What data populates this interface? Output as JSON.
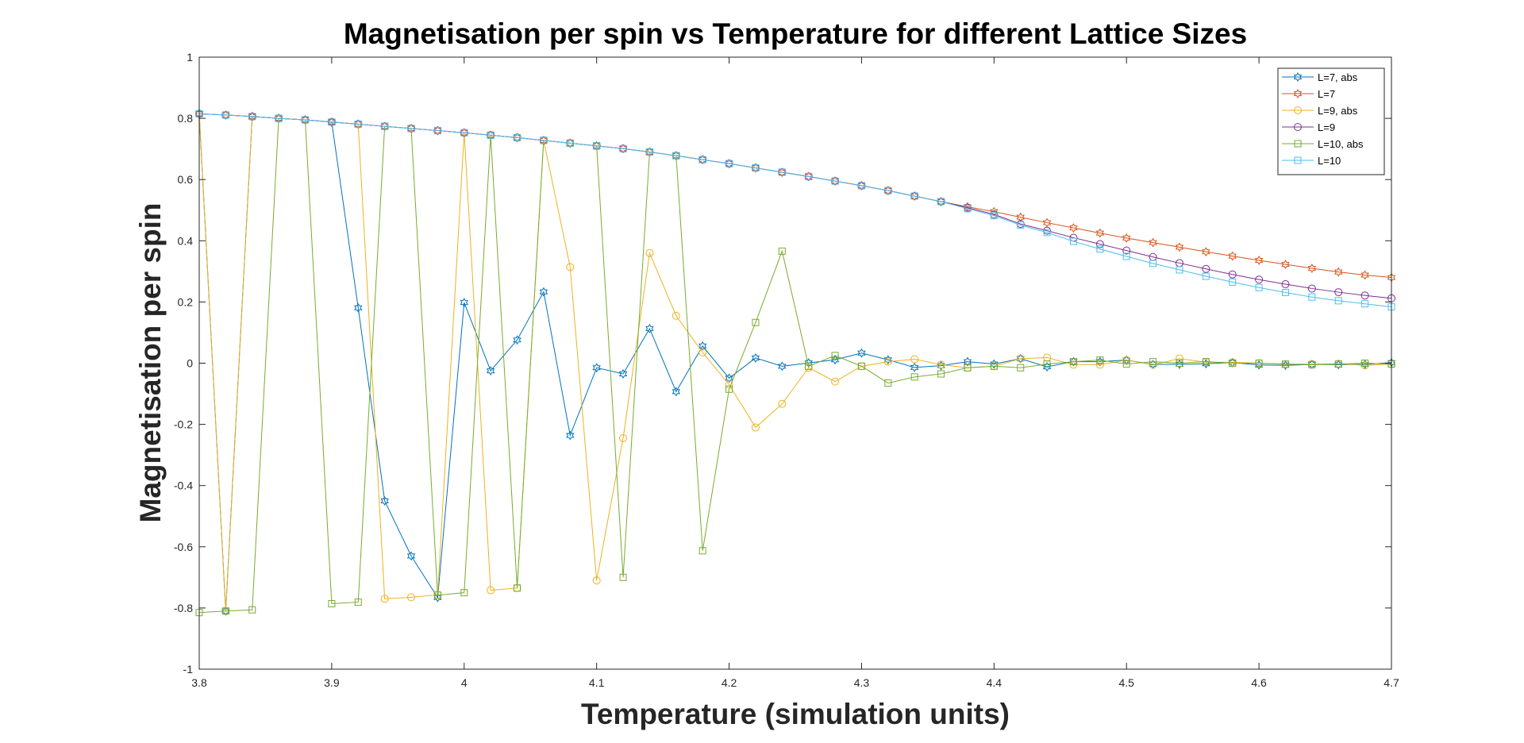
{
  "chart_data": {
    "type": "line",
    "title": "Magnetisation per spin vs Temperature for different Lattice Sizes",
    "xlabel": "Temperature (simulation units)",
    "ylabel": "Magnetisation per spin",
    "xlim": [
      3.8,
      4.7
    ],
    "ylim": [
      -1,
      1
    ],
    "xticks": [
      "3.8",
      "3.9",
      "4",
      "4.1",
      "4.2",
      "4.3",
      "4.4",
      "4.5",
      "4.6",
      "4.7"
    ],
    "yticks": [
      "-1",
      "-0.8",
      "-0.6",
      "-0.4",
      "-0.2",
      "0",
      "0.2",
      "0.4",
      "0.6",
      "0.8",
      "1"
    ],
    "grid": false,
    "legend_position": "top-right",
    "x": [
      3.8,
      3.82,
      3.84,
      3.86,
      3.88,
      3.9,
      3.92,
      3.94,
      3.96,
      3.98,
      4.0,
      4.02,
      4.04,
      4.06,
      4.08,
      4.1,
      4.12,
      4.14,
      4.16,
      4.18,
      4.2,
      4.22,
      4.24,
      4.26,
      4.28,
      4.3,
      4.32,
      4.34,
      4.36,
      4.38,
      4.4,
      4.42,
      4.44,
      4.46,
      4.48,
      4.5,
      4.52,
      4.54,
      4.56,
      4.58,
      4.6,
      4.62,
      4.64,
      4.66,
      4.68,
      4.7
    ],
    "series": [
      {
        "name": "L=7, abs",
        "color": "#0072BD",
        "marker": "hexagram",
        "values": [
          0.815,
          -0.81,
          0.806,
          0.8,
          0.795,
          0.788,
          0.181,
          -0.45,
          -0.63,
          -0.766,
          0.198,
          -0.025,
          0.076,
          0.233,
          -0.236,
          -0.015,
          -0.035,
          0.113,
          -0.093,
          0.056,
          -0.049,
          0.017,
          -0.01,
          0.001,
          0.011,
          0.033,
          0.011,
          -0.014,
          -0.008,
          0.005,
          -0.003,
          0.015,
          -0.012,
          0.005,
          0.005,
          0.01,
          -0.004,
          -0.004,
          -0.002,
          0.002,
          -0.006,
          -0.007,
          -0.004,
          -0.005,
          -0.004,
          0.002
        ]
      },
      {
        "name": "L=7",
        "color": "#D95319",
        "marker": "hexagram",
        "values": [
          0.815,
          0.811,
          0.806,
          0.8,
          0.795,
          0.788,
          0.781,
          0.774,
          0.767,
          0.76,
          0.753,
          0.745,
          0.737,
          0.728,
          0.719,
          0.71,
          0.701,
          0.69,
          0.678,
          0.665,
          0.652,
          0.638,
          0.624,
          0.61,
          0.595,
          0.58,
          0.564,
          0.546,
          0.528,
          0.511,
          0.495,
          0.477,
          0.459,
          0.442,
          0.425,
          0.409,
          0.394,
          0.379,
          0.364,
          0.35,
          0.336,
          0.323,
          0.31,
          0.298,
          0.288,
          0.28
        ]
      },
      {
        "name": "L=9, abs",
        "color": "#EDB120",
        "marker": "circle",
        "values": [
          0.815,
          -0.81,
          0.806,
          0.8,
          0.795,
          0.788,
          0.781,
          -0.77,
          -0.765,
          -0.757,
          0.753,
          -0.742,
          -0.735,
          0.728,
          0.314,
          -0.71,
          -0.245,
          0.36,
          0.155,
          0.035,
          -0.07,
          -0.21,
          -0.133,
          -0.015,
          -0.06,
          -0.01,
          0.005,
          0.013,
          -0.005,
          -0.015,
          -0.01,
          0.015,
          0.018,
          -0.005,
          -0.005,
          0.01,
          -0.005,
          0.015,
          0.003,
          0.003,
          0.0,
          -0.004,
          -0.003,
          -0.002,
          -0.007,
          -0.003
        ]
      },
      {
        "name": "L=9",
        "color": "#7E2F8E",
        "marker": "circle",
        "values": [
          0.815,
          0.811,
          0.806,
          0.8,
          0.795,
          0.788,
          0.781,
          0.774,
          0.767,
          0.76,
          0.753,
          0.745,
          0.737,
          0.728,
          0.719,
          0.71,
          0.701,
          0.69,
          0.678,
          0.665,
          0.652,
          0.638,
          0.624,
          0.61,
          0.595,
          0.58,
          0.564,
          0.546,
          0.528,
          0.508,
          0.486,
          0.455,
          0.433,
          0.41,
          0.389,
          0.368,
          0.347,
          0.327,
          0.308,
          0.29,
          0.273,
          0.258,
          0.244,
          0.232,
          0.221,
          0.212
        ]
      },
      {
        "name": "L=10, abs",
        "color": "#77AC30",
        "marker": "square",
        "values": [
          -0.815,
          -0.81,
          -0.806,
          0.8,
          0.795,
          -0.786,
          -0.781,
          0.774,
          0.767,
          -0.758,
          -0.75,
          0.745,
          -0.735,
          0.728,
          0.719,
          0.71,
          -0.7,
          0.69,
          0.678,
          -0.613,
          -0.085,
          0.133,
          0.366,
          -0.01,
          0.025,
          -0.01,
          -0.065,
          -0.045,
          -0.035,
          -0.015,
          -0.01,
          -0.015,
          -0.003,
          0.005,
          0.01,
          -0.003,
          0.005,
          0.0,
          0.005,
          0.0,
          0.0,
          -0.003,
          -0.005,
          -0.003,
          0.0,
          -0.003
        ]
      },
      {
        "name": "L=10",
        "color": "#4DBEEE",
        "marker": "square",
        "values": [
          0.815,
          0.811,
          0.806,
          0.8,
          0.795,
          0.788,
          0.781,
          0.774,
          0.767,
          0.76,
          0.753,
          0.745,
          0.737,
          0.728,
          0.719,
          0.71,
          0.701,
          0.69,
          0.678,
          0.665,
          0.652,
          0.638,
          0.624,
          0.61,
          0.595,
          0.58,
          0.564,
          0.546,
          0.528,
          0.505,
          0.482,
          0.451,
          0.427,
          0.398,
          0.373,
          0.349,
          0.326,
          0.305,
          0.284,
          0.265,
          0.247,
          0.231,
          0.216,
          0.204,
          0.194,
          0.184
        ]
      }
    ]
  }
}
